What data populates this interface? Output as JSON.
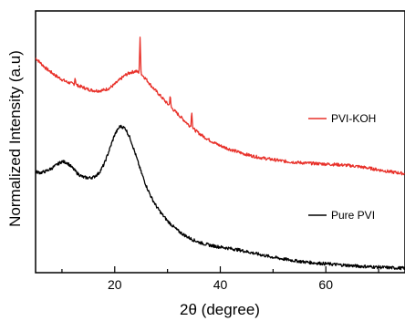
{
  "chart_data": {
    "type": "line",
    "title": "",
    "xlabel": "2θ (degree)",
    "ylabel": "Normalized Intensity (a.u)",
    "xlim": [
      5,
      75
    ],
    "ylim": [
      0,
      1
    ],
    "xticks": [
      20,
      40,
      60
    ],
    "tick_labels": [
      "20",
      "40",
      "60"
    ],
    "y_ticks_shown": false,
    "grid": false,
    "legend": "inline-right",
    "series": [
      {
        "name": "PVI-KOH",
        "color": "#e8312a",
        "points": [
          [
            5,
            0.82
          ],
          [
            6,
            0.8
          ],
          [
            7,
            0.78
          ],
          [
            8,
            0.765
          ],
          [
            9,
            0.75
          ],
          [
            10,
            0.738
          ],
          [
            11,
            0.728
          ],
          [
            12,
            0.722
          ],
          [
            13,
            0.715
          ],
          [
            14,
            0.708
          ],
          [
            15,
            0.7
          ],
          [
            16,
            0.696
          ],
          [
            17,
            0.695
          ],
          [
            18,
            0.698
          ],
          [
            19,
            0.705
          ],
          [
            20,
            0.72
          ],
          [
            21,
            0.738
          ],
          [
            22,
            0.755
          ],
          [
            23,
            0.765
          ],
          [
            24,
            0.77
          ],
          [
            25,
            0.76
          ],
          [
            26,
            0.738
          ],
          [
            27,
            0.712
          ],
          [
            28,
            0.69
          ],
          [
            29,
            0.668
          ],
          [
            30,
            0.645
          ],
          [
            31,
            0.625
          ],
          [
            32,
            0.605
          ],
          [
            33,
            0.585
          ],
          [
            34,
            0.565
          ],
          [
            35,
            0.548
          ],
          [
            36,
            0.532
          ],
          [
            37,
            0.518
          ],
          [
            38,
            0.506
          ],
          [
            39,
            0.495
          ],
          [
            40,
            0.485
          ],
          [
            42,
            0.47
          ],
          [
            44,
            0.457
          ],
          [
            46,
            0.446
          ],
          [
            48,
            0.438
          ],
          [
            50,
            0.432
          ],
          [
            52,
            0.426
          ],
          [
            54,
            0.422
          ],
          [
            56,
            0.419
          ],
          [
            58,
            0.417
          ],
          [
            60,
            0.415
          ],
          [
            62,
            0.413
          ],
          [
            64,
            0.41
          ],
          [
            66,
            0.406
          ],
          [
            68,
            0.4
          ],
          [
            70,
            0.393
          ],
          [
            72,
            0.386
          ],
          [
            75,
            0.378
          ]
        ],
        "peaks": [
          {
            "x": 12.5,
            "y": 0.745
          },
          {
            "x": 24.8,
            "y": 0.895
          },
          {
            "x": 30.5,
            "y": 0.675
          },
          {
            "x": 34.6,
            "y": 0.615
          }
        ]
      },
      {
        "name": "Pure PVI",
        "color": "#000000",
        "points": [
          [
            5,
            0.385
          ],
          [
            6,
            0.382
          ],
          [
            7,
            0.388
          ],
          [
            8,
            0.398
          ],
          [
            9,
            0.412
          ],
          [
            10,
            0.425
          ],
          [
            11,
            0.42
          ],
          [
            12,
            0.4
          ],
          [
            13,
            0.378
          ],
          [
            14,
            0.365
          ],
          [
            15,
            0.362
          ],
          [
            16,
            0.365
          ],
          [
            17,
            0.38
          ],
          [
            18,
            0.415
          ],
          [
            19,
            0.47
          ],
          [
            20,
            0.528
          ],
          [
            21,
            0.56
          ],
          [
            22,
            0.552
          ],
          [
            23,
            0.51
          ],
          [
            24,
            0.448
          ],
          [
            25,
            0.385
          ],
          [
            26,
            0.33
          ],
          [
            27,
            0.285
          ],
          [
            28,
            0.25
          ],
          [
            29,
            0.222
          ],
          [
            30,
            0.198
          ],
          [
            31,
            0.178
          ],
          [
            32,
            0.16
          ],
          [
            33,
            0.146
          ],
          [
            34,
            0.134
          ],
          [
            35,
            0.124
          ],
          [
            36,
            0.116
          ],
          [
            37,
            0.11
          ],
          [
            38,
            0.105
          ],
          [
            39,
            0.101
          ],
          [
            40,
            0.098
          ],
          [
            42,
            0.092
          ],
          [
            44,
            0.085
          ],
          [
            46,
            0.076
          ],
          [
            48,
            0.067
          ],
          [
            50,
            0.059
          ],
          [
            52,
            0.052
          ],
          [
            54,
            0.046
          ],
          [
            56,
            0.041
          ],
          [
            58,
            0.037
          ],
          [
            60,
            0.034
          ],
          [
            62,
            0.031
          ],
          [
            64,
            0.028
          ],
          [
            66,
            0.025
          ],
          [
            68,
            0.023
          ],
          [
            70,
            0.021
          ],
          [
            72,
            0.019
          ],
          [
            75,
            0.017
          ]
        ],
        "peaks": []
      }
    ],
    "legend_entries": [
      {
        "label": "PVI-KOH",
        "color": "#e8312a"
      },
      {
        "label": "Pure PVI",
        "color": "#000000"
      }
    ]
  }
}
